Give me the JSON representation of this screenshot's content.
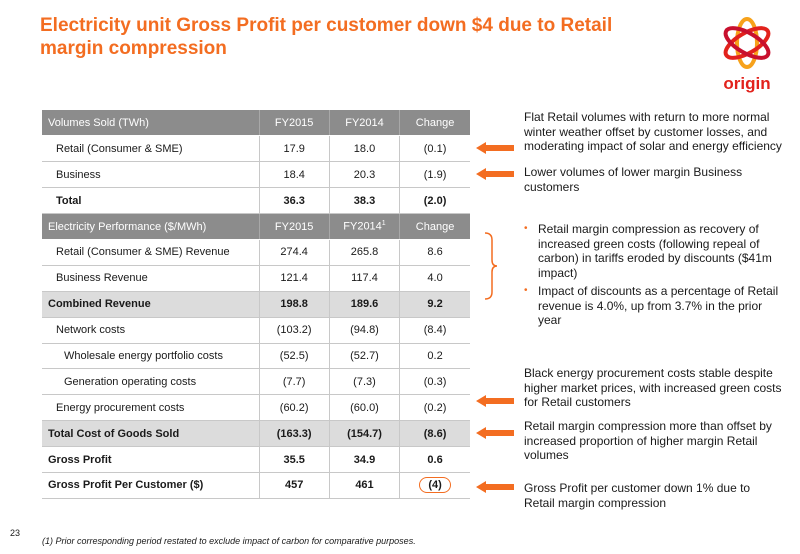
{
  "title": "Electricity unit Gross Profit per customer down $4 due to Retail margin compression",
  "logo": {
    "text": "origin"
  },
  "table": {
    "header1": [
      "Volumes Sold (TWh)",
      "FY2015",
      "FY2014",
      "Change"
    ],
    "rows1": [
      {
        "label": "Retail (Consumer & SME)",
        "fy2015": "17.9",
        "fy2014": "18.0",
        "change": "(0.1)"
      },
      {
        "label": "Business",
        "fy2015": "18.4",
        "fy2014": "20.3",
        "change": "(1.9)"
      },
      {
        "label": "Total",
        "fy2015": "36.3",
        "fy2014": "38.3",
        "change": "(2.0)"
      }
    ],
    "header2": [
      "Electricity Performance ($/MWh)",
      "FY2015",
      "FY2014",
      "1",
      "Change"
    ],
    "rows2": [
      {
        "label": "Retail (Consumer & SME) Revenue",
        "fy2015": "274.4",
        "fy2014": "265.8",
        "change": "8.6"
      },
      {
        "label": "Business Revenue",
        "fy2015": "121.4",
        "fy2014": "117.4",
        "change": "4.0"
      },
      {
        "label": "Combined Revenue",
        "fy2015": "198.8",
        "fy2014": "189.6",
        "change": "9.2"
      },
      {
        "label": "Network costs",
        "fy2015": "(103.2)",
        "fy2014": "(94.8)",
        "change": "(8.4)"
      },
      {
        "label": "Wholesale energy portfolio costs",
        "fy2015": "(52.5)",
        "fy2014": "(52.7)",
        "change": "0.2"
      },
      {
        "label": "Generation operating costs",
        "fy2015": "(7.7)",
        "fy2014": "(7.3)",
        "change": "(0.3)"
      },
      {
        "label": "Energy procurement costs",
        "fy2015": "(60.2)",
        "fy2014": "(60.0)",
        "change": "(0.2)"
      },
      {
        "label": "Total Cost of Goods Sold",
        "fy2015": "(163.3)",
        "fy2014": "(154.7)",
        "change": "(8.6)"
      },
      {
        "label": "Gross Profit",
        "fy2015": "35.5",
        "fy2014": "34.9",
        "change": "0.6"
      },
      {
        "label": "Gross Profit Per Customer ($)",
        "fy2015": "457",
        "fy2014": "461",
        "change": "(4)"
      }
    ]
  },
  "notes": {
    "n1": "Flat Retail volumes with return to more normal winter weather offset by customer losses, and moderating impact of solar and energy efficiency",
    "n2": "Lower volumes of lower margin Business customers",
    "bullet1": "Retail margin compression as recovery of increased green costs (following repeal of carbon) in tariffs eroded by discounts ($41m impact)",
    "bullet2": "Impact of discounts as a percentage of Retail revenue is 4.0%, up from 3.7% in the prior year",
    "n3": "Black energy procurement costs stable despite higher market prices, with increased green costs for Retail customers",
    "n4": "Retail margin compression more than offset by increased proportion of higher margin Retail volumes",
    "n5": "Gross Profit per customer down 1% due to Retail margin compression"
  },
  "page_number": "23",
  "footnote": "(1)   Prior corresponding period restated to exclude impact of carbon for comparative purposes.",
  "colors": {
    "accent": "#f36d21",
    "header_bg": "#8c8c8c",
    "shade_bg": "#dcdcdc",
    "logo_red": "#e2221c"
  }
}
